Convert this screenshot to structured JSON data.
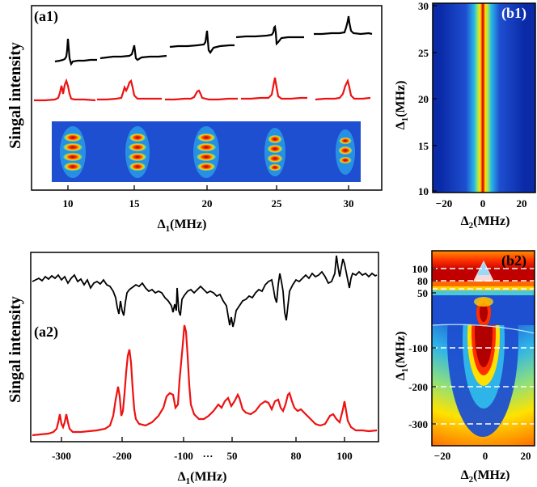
{
  "figure": {
    "a1": {
      "panel_label": "(a1)",
      "ylabel": "Singal intensity",
      "xlabel_main": "Δ",
      "xlabel_sub": "1",
      "xlabel_unit": "(MHz)",
      "xticks": [
        "10",
        "15",
        "20",
        "25",
        "30"
      ]
    },
    "a2": {
      "panel_label": "(a2)",
      "ylabel": "Singal intensity",
      "xlabel_main": "Δ",
      "xlabel_sub": "1",
      "xlabel_unit": "(MHz)",
      "xticks": [
        "-300",
        "-200",
        "-100",
        "50",
        "80",
        "100"
      ],
      "axis_break": "···"
    },
    "b1": {
      "panel_label": "(b1)",
      "ylabel_main": "Δ",
      "ylabel_sub": "1",
      "ylabel_unit": "(MHz)",
      "xlabel_main": "Δ",
      "xlabel_sub": "2",
      "xlabel_unit": "(MHz)",
      "yticks": [
        "30",
        "25",
        "20",
        "15",
        "10"
      ],
      "xticks": [
        "−20",
        "0",
        "20"
      ]
    },
    "b2": {
      "panel_label": "(b2)",
      "ylabel_main": "Δ",
      "ylabel_sub": "1",
      "ylabel_unit": "(MHz)",
      "xlabel_main": "Δ",
      "xlabel_sub": "2",
      "xlabel_unit": "(MHz)",
      "yticks": [
        "100",
        "80",
        "50",
        "-100",
        "-200",
        "-300"
      ],
      "xticks": [
        "−20",
        "0",
        "20"
      ]
    }
  },
  "colors": {
    "black_trace": "#000000",
    "red_trace": "#ee1111",
    "map_low": "#0a2aa8",
    "map_high": "#c00000",
    "dashed_lines": "#ffffff"
  },
  "chart_data": [
    {
      "type": "line",
      "panel": "a1",
      "x": [
        10,
        15,
        20,
        25,
        30
      ],
      "series_black_peak_shape": [
        "dispersive",
        "dispersive",
        "dispersive",
        "dispersive",
        "absorptive"
      ],
      "series_red_peak_shape": [
        "double",
        "double",
        "single",
        "single",
        "single"
      ],
      "xlim": [
        8,
        32
      ]
    },
    {
      "type": "line",
      "panel": "a2",
      "red_peaks_x": [
        -300,
        -290,
        -200,
        -190,
        -110,
        -100,
        -90,
        45,
        55,
        70,
        75,
        90,
        100
      ],
      "red_peaks_height": [
        0.2,
        0.2,
        0.6,
        0.8,
        0.4,
        0.45,
        1.0,
        0.25,
        0.3,
        0.3,
        0.35,
        0.2,
        0.3
      ],
      "xlim_left": [
        -340,
        -60
      ],
      "xlim_right": [
        40,
        110
      ]
    },
    {
      "type": "heatmap",
      "panel": "b1",
      "xlim": [
        -25,
        25
      ],
      "ylim": [
        10,
        30
      ],
      "ridge_x": 0
    },
    {
      "type": "heatmap",
      "panel": "b2",
      "xlim": [
        -25,
        22
      ],
      "dashed_y": [
        100,
        80,
        50,
        -100,
        -200,
        -300
      ]
    }
  ]
}
